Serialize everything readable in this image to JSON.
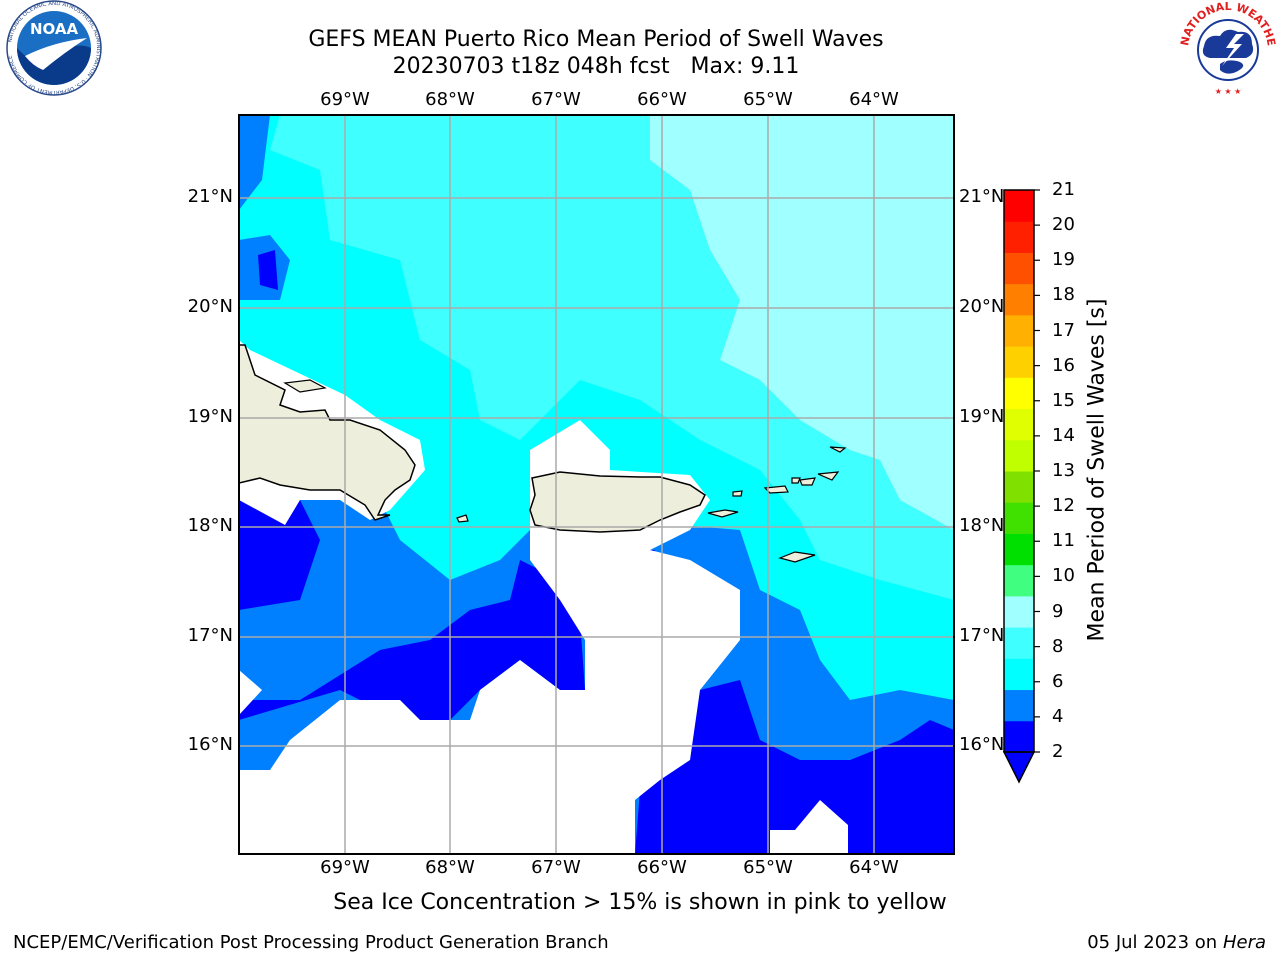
{
  "title": {
    "line1": "GEFS MEAN Puerto Rico Mean Period of Swell Waves",
    "line2": "20230703 t18z 048h fcst   Max: 9.11"
  },
  "logos": {
    "left": {
      "icon": "noaa-logo",
      "text": "NOAA",
      "ring_text": "NATIONAL OCEANIC AND ATMOSPHERIC ADMINISTRATION · U.S. DEPARTMENT OF COMMERCE"
    },
    "right": {
      "icon": "nws-logo",
      "ring_text": "NATIONAL WEATHER SERVICE"
    }
  },
  "map": {
    "lon_labels": [
      "69°W",
      "68°W",
      "67°W",
      "66°W",
      "65°W",
      "64°W"
    ],
    "lat_labels": [
      "21°N",
      "20°N",
      "19°N",
      "18°N",
      "17°N",
      "16°N"
    ],
    "land_color": "#eeeedd",
    "coast_color": "#000000",
    "grid_color": "#aaaaaa"
  },
  "colorbar": {
    "label": "Mean Period of Swell Waves [s]",
    "ticks": [
      "21",
      "20",
      "19",
      "18",
      "17",
      "16",
      "15",
      "14",
      "13",
      "12",
      "11",
      "10",
      "9",
      "8",
      "6",
      "4",
      "2"
    ],
    "colors_bottom_to_top": [
      "#0000ff",
      "#0080ff",
      "#00ffff",
      "#40ffff",
      "#a0ffff",
      "#40ff80",
      "#00e000",
      "#40e000",
      "#80e000",
      "#c0ff00",
      "#e0ff00",
      "#ffff00",
      "#ffd000",
      "#ffb000",
      "#ff8000",
      "#ff5000",
      "#ff2000",
      "#ff0000"
    ],
    "under_color": "#0000ff"
  },
  "caption": "Sea Ice Concentration > 15% is shown in pink to yellow",
  "footer": {
    "left": "NCEP/EMC/Verification Post Processing Product Generation Branch",
    "date": "05 Jul 2023 on ",
    "host": "Hera"
  }
}
